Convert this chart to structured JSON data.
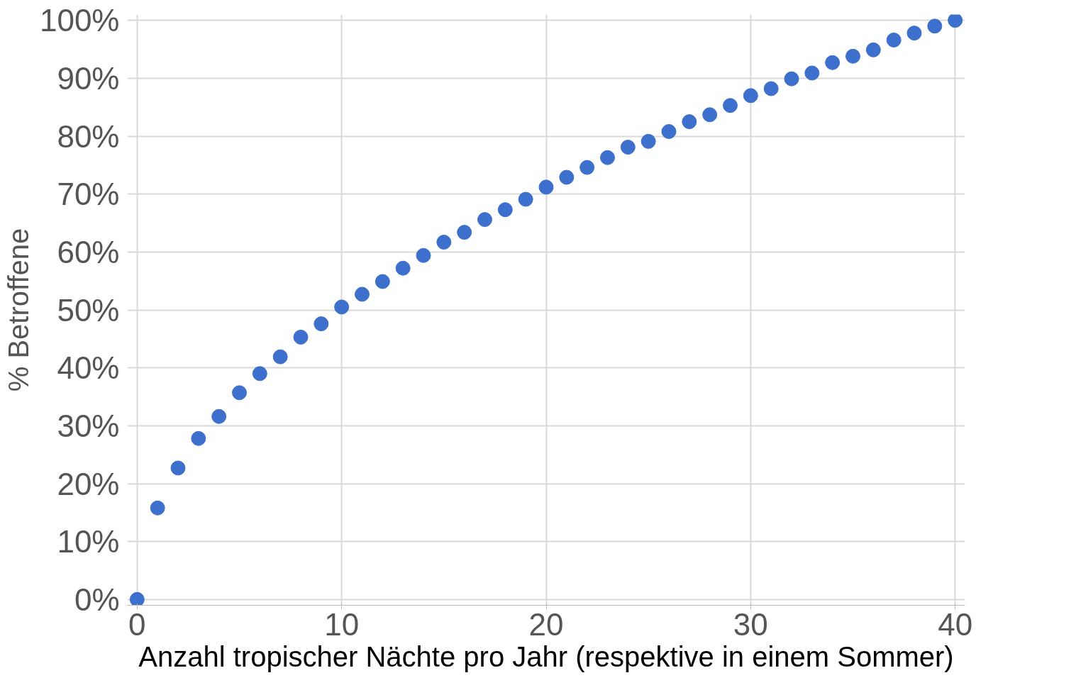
{
  "chart_data": {
    "type": "scatter",
    "xlabel": "Anzahl tropischer Nächte pro Jahr (respektive in einem Sommer)",
    "ylabel": "% Betroffene",
    "x": [
      0,
      1,
      2,
      3,
      4,
      5,
      6,
      7,
      8,
      9,
      10,
      11,
      12,
      13,
      14,
      15,
      16,
      17,
      18,
      19,
      20,
      21,
      22,
      23,
      24,
      25,
      26,
      27,
      28,
      29,
      30,
      31,
      32,
      33,
      34,
      35,
      36,
      37,
      38,
      39,
      40
    ],
    "series": [
      {
        "color": "#3d6fcc",
        "values": [
          0,
          15.8,
          22.7,
          27.8,
          31.6,
          35.7,
          39.0,
          41.9,
          45.3,
          47.6,
          50.5,
          52.7,
          54.9,
          57.2,
          59.4,
          61.7,
          63.4,
          65.6,
          67.3,
          69.1,
          71.2,
          72.9,
          74.6,
          76.3,
          78.1,
          79.1,
          80.8,
          82.5,
          83.7,
          85.3,
          87.0,
          88.2,
          89.9,
          90.9,
          92.7,
          93.8,
          94.9,
          96.6,
          97.8,
          99.0,
          100
        ]
      }
    ],
    "xlim": [
      0,
      40
    ],
    "xticks": [
      0,
      10,
      20,
      30,
      40
    ],
    "ylim": [
      0,
      100
    ],
    "yticks": [
      {
        "value": 0,
        "label": "0%"
      },
      {
        "value": 10,
        "label": "10%"
      },
      {
        "value": 20,
        "label": "20%"
      },
      {
        "value": 30,
        "label": "30%"
      },
      {
        "value": 40,
        "label": "40%"
      },
      {
        "value": 50,
        "label": "50%"
      },
      {
        "value": 60,
        "label": "60%"
      },
      {
        "value": 70,
        "label": "70%"
      },
      {
        "value": 80,
        "label": "80%"
      },
      {
        "value": 90,
        "label": "90%"
      },
      {
        "value": 100,
        "label": "100%"
      }
    ],
    "grid": true,
    "marker": "circle"
  }
}
